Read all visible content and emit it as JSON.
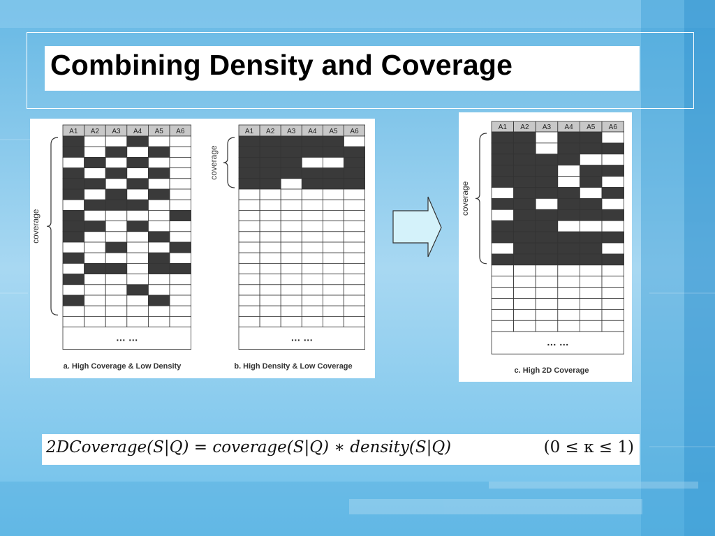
{
  "slide": {
    "title": "Combining Density and Coverage"
  },
  "panels": [
    {
      "id": "a",
      "caption": "a. High Coverage & Low Density",
      "bracket_label": "coverage",
      "columns": [
        "A1",
        "A2",
        "A3",
        "A4",
        "A5",
        "A6"
      ],
      "ellipsis": "… …",
      "rows": [
        [
          1,
          0,
          0,
          1,
          0,
          0
        ],
        [
          1,
          0,
          1,
          0,
          1,
          0
        ],
        [
          0,
          1,
          0,
          1,
          0,
          0
        ],
        [
          1,
          0,
          1,
          0,
          1,
          0
        ],
        [
          1,
          1,
          0,
          1,
          0,
          0
        ],
        [
          1,
          0,
          1,
          0,
          1,
          0
        ],
        [
          0,
          1,
          1,
          1,
          0,
          0
        ],
        [
          1,
          0,
          0,
          0,
          0,
          1
        ],
        [
          1,
          1,
          0,
          1,
          0,
          0
        ],
        [
          1,
          0,
          0,
          0,
          1,
          0
        ],
        [
          0,
          0,
          1,
          0,
          0,
          1
        ],
        [
          1,
          0,
          0,
          0,
          1,
          0
        ],
        [
          0,
          1,
          1,
          0,
          1,
          1
        ],
        [
          1,
          0,
          0,
          0,
          0,
          0
        ],
        [
          0,
          0,
          0,
          1,
          0,
          0
        ],
        [
          1,
          0,
          0,
          0,
          1,
          0
        ],
        [
          0,
          0,
          0,
          0,
          0,
          0
        ],
        [
          0,
          0,
          0,
          0,
          0,
          0
        ]
      ]
    },
    {
      "id": "b",
      "caption": "b. High Density & Low Coverage",
      "bracket_label": "coverage",
      "columns": [
        "A1",
        "A2",
        "A3",
        "A4",
        "A5",
        "A6"
      ],
      "ellipsis": "… …",
      "rows": [
        [
          1,
          1,
          1,
          1,
          1,
          0
        ],
        [
          1,
          1,
          1,
          1,
          1,
          1
        ],
        [
          1,
          1,
          1,
          0,
          0,
          1
        ],
        [
          1,
          1,
          1,
          1,
          1,
          1
        ],
        [
          1,
          1,
          0,
          1,
          1,
          1
        ],
        [
          0,
          0,
          0,
          0,
          0,
          0
        ],
        [
          0,
          0,
          0,
          0,
          0,
          0
        ],
        [
          0,
          0,
          0,
          0,
          0,
          0
        ],
        [
          0,
          0,
          0,
          0,
          0,
          0
        ],
        [
          0,
          0,
          0,
          0,
          0,
          0
        ],
        [
          0,
          0,
          0,
          0,
          0,
          0
        ],
        [
          0,
          0,
          0,
          0,
          0,
          0
        ],
        [
          0,
          0,
          0,
          0,
          0,
          0
        ],
        [
          0,
          0,
          0,
          0,
          0,
          0
        ],
        [
          0,
          0,
          0,
          0,
          0,
          0
        ],
        [
          0,
          0,
          0,
          0,
          0,
          0
        ],
        [
          0,
          0,
          0,
          0,
          0,
          0
        ],
        [
          0,
          0,
          0,
          0,
          0,
          0
        ]
      ]
    },
    {
      "id": "c",
      "caption": "c. High 2D Coverage",
      "bracket_label": "coverage",
      "columns": [
        "A1",
        "A2",
        "A3",
        "A4",
        "A5",
        "A6"
      ],
      "ellipsis": "… …",
      "rows": [
        [
          1,
          1,
          0,
          1,
          1,
          0
        ],
        [
          1,
          1,
          0,
          1,
          1,
          1
        ],
        [
          1,
          1,
          1,
          1,
          0,
          0
        ],
        [
          1,
          1,
          1,
          0,
          1,
          1
        ],
        [
          1,
          1,
          1,
          0,
          1,
          0
        ],
        [
          0,
          1,
          1,
          1,
          0,
          1
        ],
        [
          1,
          1,
          0,
          1,
          1,
          0
        ],
        [
          0,
          1,
          1,
          1,
          1,
          1
        ],
        [
          1,
          1,
          1,
          0,
          0,
          0
        ],
        [
          1,
          1,
          1,
          1,
          1,
          1
        ],
        [
          0,
          1,
          1,
          1,
          1,
          0
        ],
        [
          1,
          1,
          1,
          1,
          1,
          1
        ],
        [
          0,
          0,
          0,
          0,
          0,
          0
        ],
        [
          0,
          0,
          0,
          0,
          0,
          0
        ],
        [
          0,
          0,
          0,
          0,
          0,
          0
        ],
        [
          0,
          0,
          0,
          0,
          0,
          0
        ],
        [
          0,
          0,
          0,
          0,
          0,
          0
        ],
        [
          0,
          0,
          0,
          0,
          0,
          0
        ]
      ]
    }
  ],
  "formula": {
    "left": "2DCoverage(S|Q) = coverage(S|Q)  ∗ density(S|Q)",
    "right": "(0 ≤ κ ≤ 1)"
  },
  "colors": {
    "filled_cell": "#3a3a3a",
    "header_fill": "#c8c8c8",
    "arrow_fill": "#d4f2fa",
    "background_top": "#5fb3e0",
    "background_bottom": "#bfe3f5"
  }
}
